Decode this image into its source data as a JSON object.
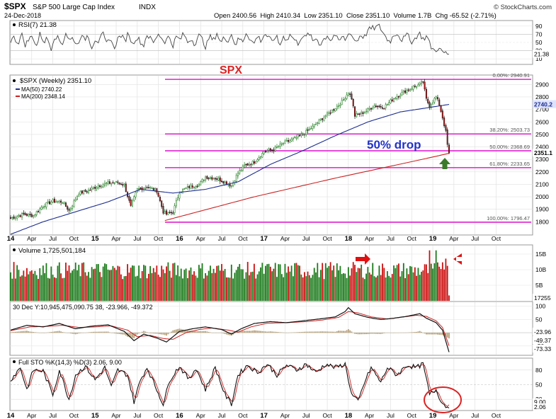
{
  "header": {
    "symbol": "$SPX",
    "name": "S&P 500 Large Cap Index",
    "exchange": "INDX",
    "date": "24-Dec-2018",
    "ohlc": "Open 2400.56  High 2410.34  Low 2351.10  Close 2351.10  Volume 1.7B  Chg -65.52 (-2.71%)",
    "credit": "© StockCharts.com"
  },
  "annotations": {
    "title": "SPX",
    "drop_text": "50% drop"
  },
  "chart_data": [
    {
      "type": "line",
      "panel": "rsi",
      "label": "RSI(7) 21.38",
      "ylim": [
        0,
        100
      ],
      "ticks": [
        10,
        30,
        50,
        70,
        90
      ],
      "value_tag": "21.38",
      "values": [
        55,
        62,
        48,
        70,
        44,
        58,
        66,
        40,
        72,
        52,
        60,
        36,
        68,
        58,
        46,
        74,
        54,
        62,
        42,
        66,
        56,
        70,
        38,
        60,
        50,
        72,
        46,
        64,
        34,
        58,
        68,
        52,
        76,
        44,
        62,
        56,
        40,
        70,
        58,
        48,
        74,
        60,
        52,
        66,
        42,
        64,
        56,
        72,
        50,
        60,
        46,
        68,
        58,
        38,
        66,
        54,
        74,
        48,
        62,
        56,
        70,
        44,
        60,
        52,
        76,
        58,
        46,
        66,
        54,
        72,
        62,
        50,
        68,
        42,
        64,
        58,
        70,
        56,
        48,
        66,
        60,
        74,
        52,
        62,
        44,
        58,
        68,
        54,
        72,
        50,
        64,
        56,
        78,
        60,
        52,
        70,
        62,
        80,
        84,
        86,
        90,
        76,
        60,
        52,
        68,
        74,
        56,
        62,
        70,
        48,
        64,
        72,
        58,
        66,
        40,
        30,
        36,
        28,
        24,
        21.38
      ]
    },
    {
      "type": "candlestick",
      "panel": "price",
      "label": "$SPX (Weekly) 2351.10",
      "x_ticks": [
        "14",
        "Apr",
        "Jul",
        "Oct",
        "15",
        "Apr",
        "Jul",
        "Oct",
        "16",
        "Apr",
        "Jul",
        "Oct",
        "17",
        "Apr",
        "Jul",
        "Oct",
        "18",
        "Apr",
        "Jul",
        "Oct",
        "19",
        "Apr",
        "Jul",
        "Oct"
      ],
      "ylim": [
        1700,
        2970
      ],
      "y_ticks": [
        1800,
        1900,
        2000,
        2100,
        2200,
        2300,
        2400,
        2500,
        2600,
        2700,
        2800,
        2900
      ],
      "price_anchors": [
        [
          0,
          1830
        ],
        [
          8,
          1860
        ],
        [
          14,
          1850
        ],
        [
          20,
          1930
        ],
        [
          26,
          1965
        ],
        [
          32,
          1960
        ],
        [
          36,
          1890
        ],
        [
          42,
          2030
        ],
        [
          48,
          2050
        ],
        [
          54,
          2090
        ],
        [
          60,
          2110
        ],
        [
          66,
          2115
        ],
        [
          70,
          2095
        ],
        [
          74,
          1920
        ],
        [
          78,
          2060
        ],
        [
          84,
          2080
        ],
        [
          90,
          2050
        ],
        [
          94,
          1880
        ],
        [
          96,
          1860
        ],
        [
          100,
          1880
        ],
        [
          104,
          2040
        ],
        [
          110,
          2080
        ],
        [
          116,
          2100
        ],
        [
          120,
          2160
        ],
        [
          126,
          2150
        ],
        [
          130,
          2130
        ],
        [
          136,
          2090
        ],
        [
          140,
          2190
        ],
        [
          144,
          2250
        ],
        [
          150,
          2280
        ],
        [
          156,
          2360
        ],
        [
          162,
          2380
        ],
        [
          168,
          2430
        ],
        [
          174,
          2460
        ],
        [
          180,
          2500
        ],
        [
          186,
          2560
        ],
        [
          192,
          2630
        ],
        [
          198,
          2690
        ],
        [
          204,
          2760
        ],
        [
          208,
          2840
        ],
        [
          210,
          2790
        ],
        [
          212,
          2650
        ],
        [
          218,
          2680
        ],
        [
          224,
          2730
        ],
        [
          230,
          2720
        ],
        [
          236,
          2790
        ],
        [
          242,
          2840
        ],
        [
          248,
          2880
        ],
        [
          252,
          2900
        ],
        [
          254,
          2920
        ],
        [
          256,
          2780
        ],
        [
          258,
          2730
        ],
        [
          262,
          2800
        ],
        [
          264,
          2740
        ],
        [
          266,
          2635
        ],
        [
          268,
          2520
        ],
        [
          269,
          2416
        ],
        [
          270,
          2351.1
        ]
      ],
      "ma50": {
        "label": "MA(50) 2740.22",
        "value": 2740.22,
        "anchors": [
          [
            0,
            1700
          ],
          [
            20,
            1800
          ],
          [
            60,
            1960
          ],
          [
            80,
            2060
          ],
          [
            100,
            2030
          ],
          [
            120,
            2060
          ],
          [
            140,
            2120
          ],
          [
            160,
            2260
          ],
          [
            180,
            2370
          ],
          [
            200,
            2490
          ],
          [
            220,
            2600
          ],
          [
            240,
            2680
          ],
          [
            260,
            2720
          ],
          [
            270,
            2740.22
          ]
        ]
      },
      "ma200": {
        "label": "MA(200) 2348.14",
        "value": 2348.14,
        "anchors": [
          [
            95,
            1810
          ],
          [
            150,
            2000
          ],
          [
            200,
            2150
          ],
          [
            250,
            2290
          ],
          [
            270,
            2348.14
          ]
        ]
      },
      "fibonacci": [
        {
          "label": "0.00%: 2940.91",
          "value": 2940.91
        },
        {
          "label": "38.20%: 2503.73",
          "value": 2503.73
        },
        {
          "label": "50.00%: 2368.69",
          "value": 2368.69
        },
        {
          "label": "61.80%: 2233.65",
          "value": 2233.65
        },
        {
          "label": "100.00%: 1796.47",
          "value": 1796.47
        }
      ],
      "value_tags": [
        "2740.2",
        "2351.1"
      ]
    },
    {
      "type": "bar",
      "panel": "volume",
      "label": "Volume 1,725,501,184",
      "ylim": [
        0,
        17500000000
      ],
      "y_tick_labels": [
        "5B",
        "10B",
        "15B"
      ],
      "y_tick_values": [
        5000000000,
        10000000000,
        15000000000
      ],
      "value_tag": "17255",
      "last_value": 1725501184
    },
    {
      "type": "line",
      "panel": "macd",
      "label": "30 Dec Y:10,945,475,090.75 38, -23.966, -49.372",
      "ylim": [
        -80,
        110
      ],
      "ticks": [
        -50,
        0,
        50,
        100
      ],
      "value_tags": [
        "-23.96",
        "-49.37",
        "-73.33"
      ],
      "macd_anchors": [
        [
          0,
          10
        ],
        [
          10,
          28
        ],
        [
          20,
          22
        ],
        [
          30,
          35
        ],
        [
          40,
          15
        ],
        [
          50,
          25
        ],
        [
          60,
          30
        ],
        [
          70,
          5
        ],
        [
          76,
          -30
        ],
        [
          82,
          -5
        ],
        [
          90,
          -20
        ],
        [
          96,
          -35
        ],
        [
          104,
          5
        ],
        [
          112,
          15
        ],
        [
          120,
          22
        ],
        [
          130,
          12
        ],
        [
          136,
          -5
        ],
        [
          142,
          15
        ],
        [
          150,
          35
        ],
        [
          160,
          42
        ],
        [
          170,
          38
        ],
        [
          180,
          45
        ],
        [
          190,
          52
        ],
        [
          200,
          60
        ],
        [
          206,
          80
        ],
        [
          208,
          95
        ],
        [
          212,
          72
        ],
        [
          220,
          58
        ],
        [
          228,
          50
        ],
        [
          236,
          55
        ],
        [
          244,
          62
        ],
        [
          252,
          72
        ],
        [
          256,
          55
        ],
        [
          262,
          38
        ],
        [
          266,
          10
        ],
        [
          270,
          -73.33
        ]
      ],
      "signal_anchors": [
        [
          0,
          8
        ],
        [
          12,
          22
        ],
        [
          22,
          24
        ],
        [
          32,
          28
        ],
        [
          42,
          20
        ],
        [
          52,
          22
        ],
        [
          62,
          26
        ],
        [
          72,
          10
        ],
        [
          78,
          -15
        ],
        [
          86,
          -10
        ],
        [
          94,
          -22
        ],
        [
          100,
          -25
        ],
        [
          108,
          0
        ],
        [
          116,
          12
        ],
        [
          124,
          18
        ],
        [
          134,
          10
        ],
        [
          140,
          2
        ],
        [
          148,
          22
        ],
        [
          158,
          36
        ],
        [
          170,
          38
        ],
        [
          182,
          42
        ],
        [
          192,
          48
        ],
        [
          202,
          58
        ],
        [
          208,
          80
        ],
        [
          214,
          75
        ],
        [
          222,
          60
        ],
        [
          232,
          52
        ],
        [
          240,
          58
        ],
        [
          250,
          66
        ],
        [
          256,
          62
        ],
        [
          262,
          45
        ],
        [
          266,
          20
        ],
        [
          270,
          -49.37
        ]
      ]
    },
    {
      "type": "line",
      "panel": "stochastic",
      "label": "Full STO %K(14,3) %D(3) 2.06, 9.00",
      "ylim": [
        0,
        100
      ],
      "ticks": [
        20,
        50,
        80
      ],
      "value_tags": [
        "9.00",
        "2.06"
      ],
      "k_anchors": [
        [
          0,
          60
        ],
        [
          6,
          85
        ],
        [
          10,
          40
        ],
        [
          14,
          80
        ],
        [
          20,
          78
        ],
        [
          26,
          30
        ],
        [
          30,
          80
        ],
        [
          36,
          20
        ],
        [
          40,
          70
        ],
        [
          46,
          88
        ],
        [
          52,
          60
        ],
        [
          58,
          85
        ],
        [
          62,
          45
        ],
        [
          66,
          80
        ],
        [
          72,
          70
        ],
        [
          76,
          15
        ],
        [
          80,
          60
        ],
        [
          84,
          85
        ],
        [
          90,
          40
        ],
        [
          94,
          10
        ],
        [
          98,
          60
        ],
        [
          104,
          88
        ],
        [
          110,
          60
        ],
        [
          114,
          85
        ],
        [
          120,
          40
        ],
        [
          126,
          85
        ],
        [
          132,
          30
        ],
        [
          136,
          10
        ],
        [
          140,
          70
        ],
        [
          146,
          90
        ],
        [
          152,
          75
        ],
        [
          158,
          92
        ],
        [
          164,
          70
        ],
        [
          170,
          90
        ],
        [
          176,
          80
        ],
        [
          182,
          92
        ],
        [
          188,
          75
        ],
        [
          194,
          92
        ],
        [
          200,
          85
        ],
        [
          206,
          92
        ],
        [
          210,
          30
        ],
        [
          214,
          15
        ],
        [
          218,
          55
        ],
        [
          222,
          85
        ],
        [
          228,
          55
        ],
        [
          232,
          85
        ],
        [
          238,
          70
        ],
        [
          244,
          90
        ],
        [
          250,
          85
        ],
        [
          254,
          92
        ],
        [
          258,
          30
        ],
        [
          262,
          40
        ],
        [
          264,
          25
        ],
        [
          266,
          12
        ],
        [
          268,
          6
        ],
        [
          270,
          2.06
        ]
      ]
    }
  ]
}
